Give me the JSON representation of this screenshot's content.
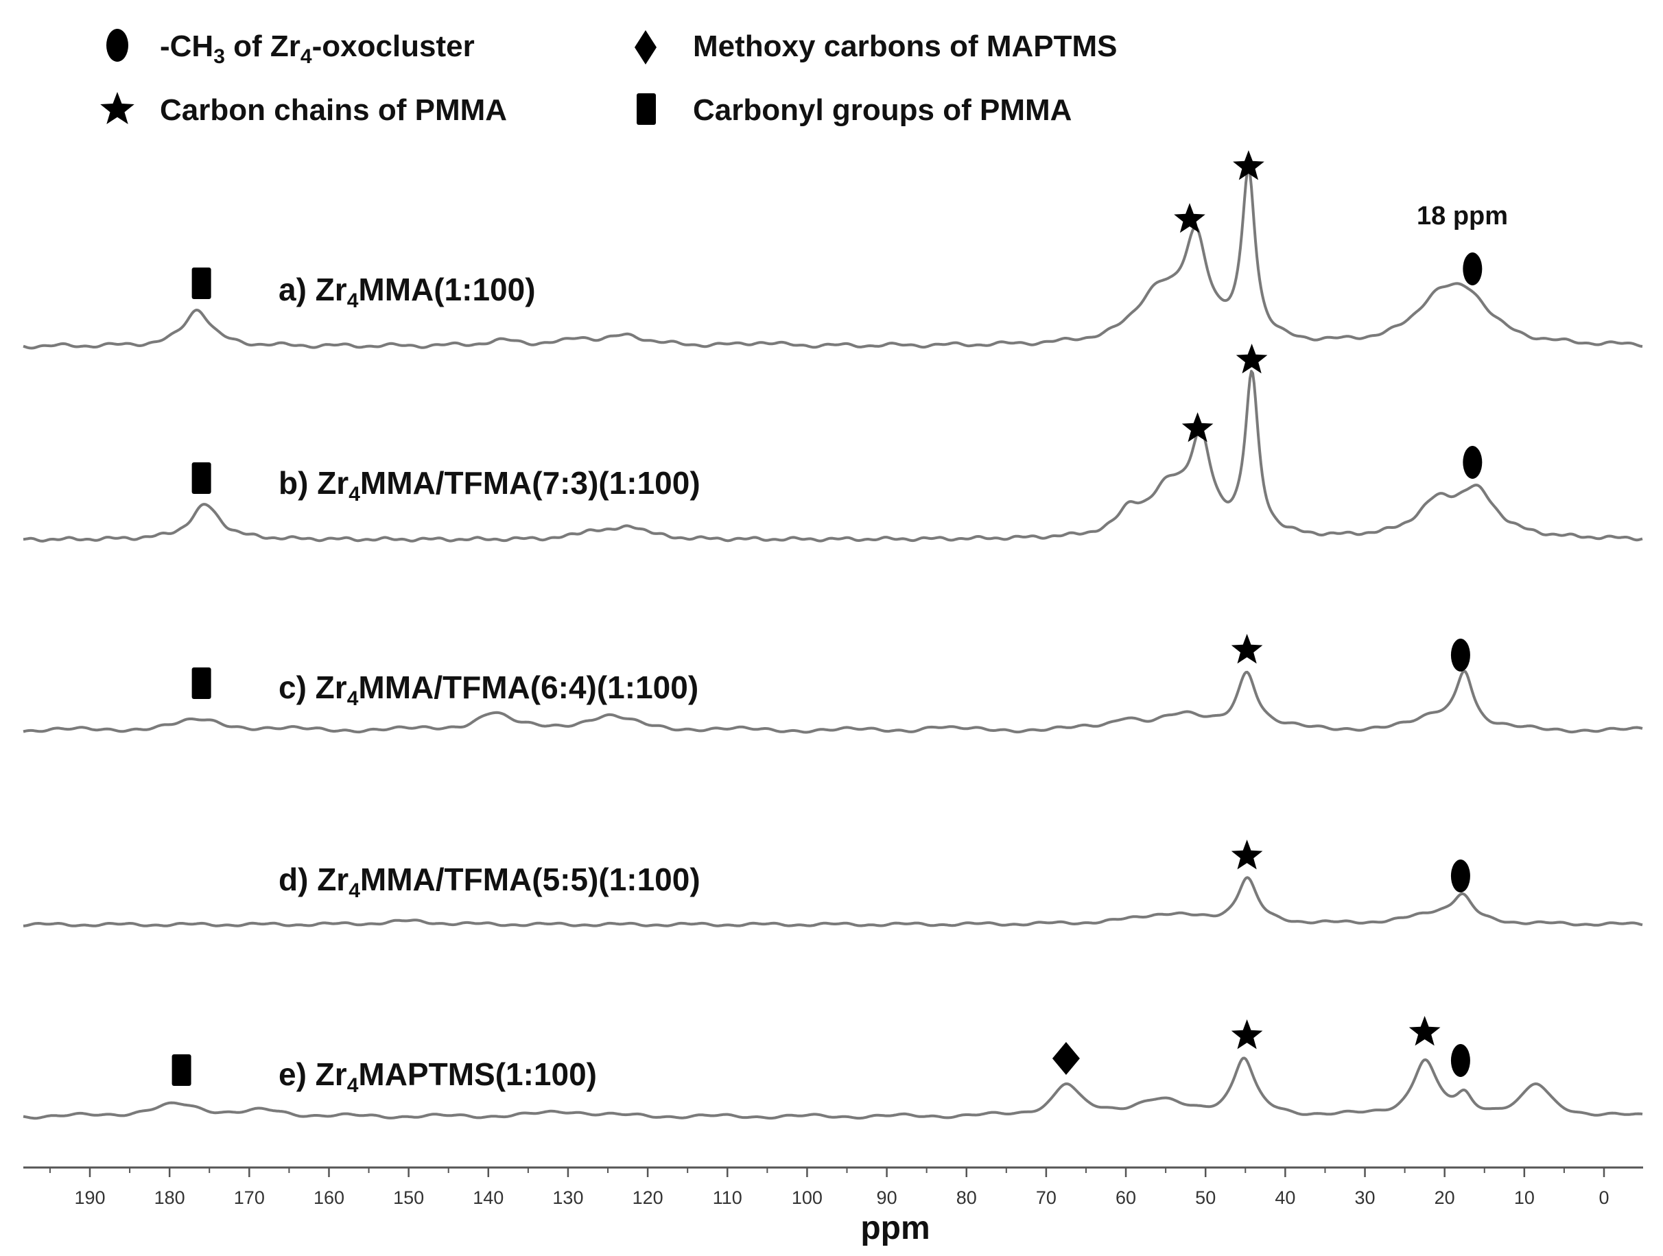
{
  "chart_data": {
    "type": "line",
    "title": "",
    "xlabel": "ppm",
    "ylabel": "",
    "xlim": [
      195,
      -5
    ],
    "x_reversed": true,
    "grid": false,
    "x_ticks": [
      190,
      180,
      170,
      160,
      150,
      140,
      130,
      120,
      110,
      100,
      90,
      80,
      70,
      60,
      50,
      40,
      30,
      20,
      10,
      0
    ],
    "legend": [
      {
        "symbol": "ellipse",
        "icon": "ellipse-marker-icon",
        "text_parts": {
          "a": "-CH",
          "b": "3",
          "c": " of Zr",
          "d": "4",
          "e": "-oxocluster"
        }
      },
      {
        "symbol": "diamond",
        "icon": "diamond-marker-icon",
        "text": "Methoxy carbons of MAPTMS"
      },
      {
        "symbol": "star",
        "icon": "star-marker-icon",
        "text": "Carbon chains of PMMA"
      },
      {
        "symbol": "rect",
        "icon": "rect-marker-icon",
        "text": "Carbonyl groups of PMMA"
      }
    ],
    "annotation": "18 ppm",
    "series": [
      {
        "name": "a) Zr4MMA(1:100)",
        "label_parts": {
          "prefix": "a) Zr",
          "sub": "4",
          "suffix": "MMA(1:100)"
        },
        "peaks": [
          {
            "ppm": 176.5,
            "height": 0.22,
            "width": 2.0
          },
          {
            "ppm": 138,
            "height": 0.03,
            "width": 3
          },
          {
            "ppm": 128.5,
            "height": 0.04,
            "width": 2
          },
          {
            "ppm": 122.5,
            "height": 0.06,
            "width": 3
          },
          {
            "ppm": 106,
            "height": 0.02,
            "width": 2
          },
          {
            "ppm": 56,
            "height": 0.3,
            "width": 3.5
          },
          {
            "ppm": 51.2,
            "height": 0.58,
            "width": 1.8
          },
          {
            "ppm": 44.6,
            "height": 1.0,
            "width": 1.0
          },
          {
            "ppm": 21,
            "height": 0.22,
            "width": 3.5
          },
          {
            "ppm": 17,
            "height": 0.25,
            "width": 3.5
          }
        ],
        "markers": [
          {
            "symbol": "rect",
            "ppm": 176
          },
          {
            "symbol": "star",
            "ppm": 52.0
          },
          {
            "symbol": "star",
            "ppm": 44.6
          },
          {
            "symbol": "ellipse",
            "ppm": 16.5
          }
        ]
      },
      {
        "name": "b) Zr4MMA/TFMA(7:3)(1:100)",
        "label_parts": {
          "prefix": "b) Zr",
          "sub": "4",
          "suffix": "MMA/TFMA(7:3)(1:100)"
        },
        "peaks": [
          {
            "ppm": 175.5,
            "height": 0.22,
            "width": 2.2
          },
          {
            "ppm": 127,
            "height": 0.05,
            "width": 2
          },
          {
            "ppm": 122,
            "height": 0.08,
            "width": 2.5
          },
          {
            "ppm": 59.5,
            "height": 0.14,
            "width": 1.8
          },
          {
            "ppm": 54.5,
            "height": 0.3,
            "width": 3.0
          },
          {
            "ppm": 50.6,
            "height": 0.55,
            "width": 1.6
          },
          {
            "ppm": 44.2,
            "height": 1.0,
            "width": 1.0
          },
          {
            "ppm": 21,
            "height": 0.2,
            "width": 3.0
          },
          {
            "ppm": 16,
            "height": 0.28,
            "width": 3.0
          }
        ],
        "markers": [
          {
            "symbol": "rect",
            "ppm": 176
          },
          {
            "symbol": "star",
            "ppm": 51.0
          },
          {
            "symbol": "star",
            "ppm": 44.2
          },
          {
            "symbol": "ellipse",
            "ppm": 16.5
          }
        ]
      },
      {
        "name": "c) Zr4MMA/TFMA(6:4)(1:100)",
        "label_parts": {
          "prefix": "c) Zr",
          "sub": "4",
          "suffix": "MMA/TFMA(6:4)(1:100)"
        },
        "peaks": [
          {
            "ppm": 176,
            "height": 0.06,
            "width": 4
          },
          {
            "ppm": 139.5,
            "height": 0.1,
            "width": 2.5
          },
          {
            "ppm": 125,
            "height": 0.08,
            "width": 4
          },
          {
            "ppm": 84,
            "height": 0.02,
            "width": 1.5
          },
          {
            "ppm": 60,
            "height": 0.06,
            "width": 2
          },
          {
            "ppm": 53,
            "height": 0.08,
            "width": 4
          },
          {
            "ppm": 44.8,
            "height": 0.33,
            "width": 1.5
          },
          {
            "ppm": 21,
            "height": 0.07,
            "width": 3
          },
          {
            "ppm": 17.5,
            "height": 0.33,
            "width": 1.3
          }
        ],
        "markers": [
          {
            "symbol": "rect",
            "ppm": 176
          },
          {
            "symbol": "star",
            "ppm": 44.8
          },
          {
            "symbol": "ellipse",
            "ppm": 18
          }
        ]
      },
      {
        "name": "d) Zr4MMA/TFMA(5:5)(1:100)",
        "label_parts": {
          "prefix": "d) Zr",
          "sub": "4",
          "suffix": "MMA/TFMA(5:5)(1:100)"
        },
        "peaks": [
          {
            "ppm": 150,
            "height": 0.02,
            "width": 4
          },
          {
            "ppm": 55,
            "height": 0.06,
            "width": 5
          },
          {
            "ppm": 44.8,
            "height": 0.26,
            "width": 1.5
          },
          {
            "ppm": 21,
            "height": 0.06,
            "width": 4
          },
          {
            "ppm": 17.8,
            "height": 0.14,
            "width": 1.5
          }
        ],
        "markers": [
          {
            "symbol": "star",
            "ppm": 44.8
          },
          {
            "symbol": "ellipse",
            "ppm": 18
          }
        ]
      },
      {
        "name": "e) Zr4MAPTMS(1:100)",
        "label_parts": {
          "prefix": "e) Zr",
          "sub": "4",
          "suffix": "MAPTMS(1:100)"
        },
        "peaks": [
          {
            "ppm": 179,
            "height": 0.07,
            "width": 4
          },
          {
            "ppm": 168,
            "height": 0.03,
            "width": 3
          },
          {
            "ppm": 130,
            "height": 0.03,
            "width": 4
          },
          {
            "ppm": 67.5,
            "height": 0.18,
            "width": 2.0
          },
          {
            "ppm": 56,
            "height": 0.09,
            "width": 4
          },
          {
            "ppm": 45.2,
            "height": 0.33,
            "width": 1.6
          },
          {
            "ppm": 22.5,
            "height": 0.32,
            "width": 1.8
          },
          {
            "ppm": 17.5,
            "height": 0.1,
            "width": 1.2
          },
          {
            "ppm": 8.5,
            "height": 0.18,
            "width": 2.2
          }
        ],
        "markers": [
          {
            "symbol": "rect",
            "ppm": 178.5
          },
          {
            "symbol": "diamond",
            "ppm": 67.5
          },
          {
            "symbol": "star",
            "ppm": 44.8
          },
          {
            "symbol": "star",
            "ppm": 22.5
          },
          {
            "symbol": "ellipse",
            "ppm": 18
          }
        ]
      }
    ]
  }
}
